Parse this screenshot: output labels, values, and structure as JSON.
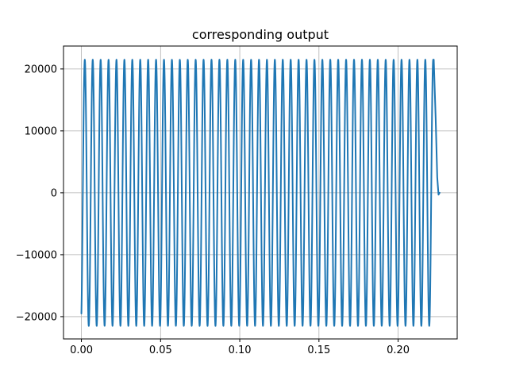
{
  "chart_data": {
    "type": "line",
    "title": "corresponding output",
    "xlabel": "",
    "ylabel": "",
    "xlim": [
      -0.0113,
      0.2373
    ],
    "ylim": [
      -23600,
      23700
    ],
    "grid": true,
    "xticks": [
      0.0,
      0.05,
      0.1,
      0.15,
      0.2
    ],
    "xtick_labels": [
      "0.00",
      "0.05",
      "0.10",
      "0.15",
      "0.20"
    ],
    "yticks": [
      -20000,
      -10000,
      0,
      10000,
      20000
    ],
    "ytick_labels": [
      "−20000",
      "−10000",
      "0",
      "10000",
      "20000"
    ],
    "series": [
      {
        "color": "#1f77b4",
        "waveform": "sine",
        "amplitude": 21500,
        "frequency_hz": 200,
        "x_start": 0.0,
        "x_end": 0.2225,
        "start_value": -19500,
        "tail": {
          "x": [
            0.2225,
            0.2237,
            0.2247,
            0.2255,
            0.2262
          ],
          "y": [
            21500,
            12000,
            2500,
            -300,
            0
          ]
        }
      }
    ]
  }
}
